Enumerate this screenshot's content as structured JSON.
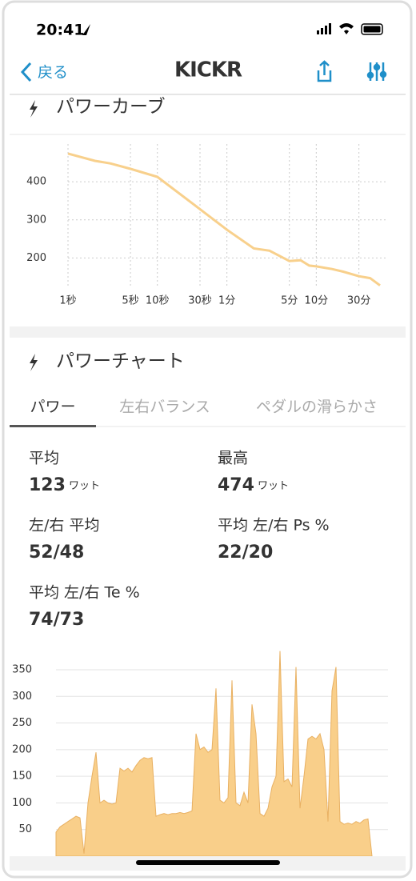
{
  "status_bar": {
    "time": "20:41"
  },
  "nav": {
    "back": "戻る",
    "title": "KICKR"
  },
  "power_curve_section": {
    "title": "パワーカーブ"
  },
  "power_chart_section": {
    "title": "パワーチャート",
    "tabs": [
      "パワー",
      "左右バランス",
      "ペダルの滑らかさ"
    ],
    "stats": [
      {
        "label": "平均",
        "value": "123",
        "unit": "ワット"
      },
      {
        "label": "最高",
        "value": "474",
        "unit": "ワット"
      },
      {
        "label": "左/右 平均",
        "value": "52/48"
      },
      {
        "label": "平均 左/右 Ps %",
        "value": "22/20"
      },
      {
        "label": "平均 左/右 Te %",
        "value": "74/73"
      }
    ]
  },
  "chart_data": [
    {
      "type": "line",
      "x": [
        1,
        2,
        3,
        5,
        10,
        30,
        60,
        120,
        180,
        300,
        400,
        500,
        600,
        900,
        1200,
        1800,
        2400,
        3100
      ],
      "values": [
        474,
        455,
        448,
        434,
        413,
        328,
        274,
        225,
        219,
        192,
        194,
        180,
        178,
        171,
        164,
        152,
        147,
        128
      ],
      "color": "#f8d08c",
      "xscale": "log",
      "xlim": [
        1,
        3100
      ],
      "xticks": [
        {
          "value": 1,
          "label": "1秒"
        },
        {
          "value": 5,
          "label": "5秒"
        },
        {
          "value": 10,
          "label": "10秒"
        },
        {
          "value": 30,
          "label": "30秒"
        },
        {
          "value": 60,
          "label": "1分"
        },
        {
          "value": 300,
          "label": "5分"
        },
        {
          "value": 600,
          "label": "10分"
        },
        {
          "value": 1800,
          "label": "30分"
        }
      ],
      "ylim": [
        100,
        520
      ],
      "yticks": [
        200,
        300,
        400
      ],
      "grid": true
    },
    {
      "type": "area",
      "values": [
        45,
        55,
        60,
        65,
        70,
        75,
        72,
        5,
        100,
        150,
        195,
        100,
        105,
        100,
        98,
        100,
        165,
        160,
        165,
        158,
        170,
        180,
        185,
        183,
        185,
        75,
        78,
        80,
        78,
        80,
        80,
        82,
        80,
        82,
        85,
        230,
        200,
        205,
        195,
        200,
        315,
        105,
        100,
        110,
        330,
        100,
        95,
        120,
        100,
        285,
        230,
        80,
        75,
        90,
        130,
        150,
        385,
        140,
        145,
        130,
        355,
        90,
        150,
        220,
        225,
        220,
        230,
        200,
        65,
        310,
        355,
        65,
        60,
        62,
        60,
        65,
        62,
        68,
        70,
        0
      ],
      "color": "#f9cf8a",
      "ylim": [
        0,
        380
      ],
      "yticks": [
        50,
        100,
        150,
        200,
        250,
        300,
        350
      ],
      "grid": true
    }
  ]
}
